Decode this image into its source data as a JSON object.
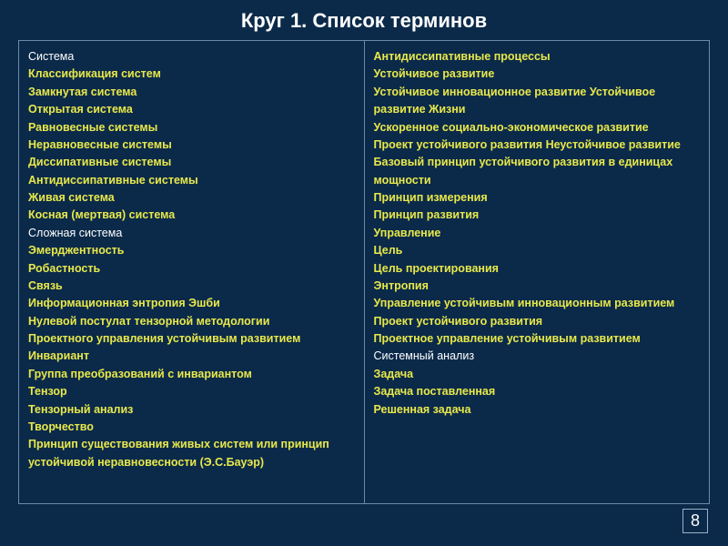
{
  "title": "Круг 1. Список терминов",
  "page_number": "8",
  "colors": {
    "background": "#0b2a4a",
    "border": "#6a8aa8",
    "white_text": "#ffffff",
    "yellow_text": "#e8e84a"
  },
  "left_column": [
    {
      "text": "Система",
      "style": "white"
    },
    {
      "text": "Классификация систем",
      "style": "yellow"
    },
    {
      "text": "Замкнутая система",
      "style": "yellow"
    },
    {
      "text": "Открытая система",
      "style": "yellow"
    },
    {
      "text": "Равновесные системы",
      "style": "yellow"
    },
    {
      "text": "Неравновесные системы",
      "style": "yellow"
    },
    {
      "text": "Диссипативные системы",
      "style": "yellow"
    },
    {
      "text": "Антидиссипативные системы",
      "style": "yellow"
    },
    {
      "text": "Живая система",
      "style": "yellow"
    },
    {
      "text": "Косная (мертвая) система",
      "style": "yellow"
    },
    {
      "text": "Сложная система",
      "style": "white"
    },
    {
      "text": "Эмерджентность",
      "style": "yellow"
    },
    {
      "text": "Робастность",
      "style": "yellow"
    },
    {
      "text": "Связь",
      "style": "yellow"
    },
    {
      "text": "Информационная энтропия Эшби",
      "style": "yellow"
    },
    {
      "text": "Нулевой постулат тензорной методологии",
      "style": "yellow"
    },
    {
      "text": "Проектного управления устойчивым развитием",
      "style": "yellow"
    },
    {
      "text": "Инвариант",
      "style": "yellow"
    },
    {
      "text": "Группа преобразований с инвариантом",
      "style": "yellow"
    },
    {
      "text": "Тензор",
      "style": "yellow"
    },
    {
      "text": "Тензорный анализ",
      "style": "yellow"
    },
    {
      "text": "Творчество",
      "style": "yellow"
    },
    {
      "text": "Принцип существования живых систем или принцип устойчивой неравновесности (Э.С.Бауэр)",
      "style": "yellow"
    }
  ],
  "right_column": [
    {
      "text": "Антидиссипативные процессы",
      "style": "yellow"
    },
    {
      "text": "Устойчивое развитие",
      "style": "yellow"
    },
    {
      "text": "Устойчивое инновационное развитие Устойчивое развитие Жизни",
      "style": "yellow"
    },
    {
      "text": "Ускоренное социально-экономическое развитие",
      "style": "yellow"
    },
    {
      "text": "Проект устойчивого развития Неустойчивое развитие",
      "style": "yellow"
    },
    {
      "text": "Базовый принцип устойчивого развития в единицах мощности",
      "style": "yellow"
    },
    {
      "text": "Принцип измерения",
      "style": "yellow"
    },
    {
      "text": "Принцип развития",
      "style": "yellow"
    },
    {
      "text": "Управление",
      "style": "yellow"
    },
    {
      "text": "Цель",
      "style": "yellow"
    },
    {
      "text": "Цель проектирования",
      "style": "yellow"
    },
    {
      "text": "Энтропия",
      "style": "yellow"
    },
    {
      "text": "Управление устойчивым инновационным развитием",
      "style": "yellow"
    },
    {
      "text": "Проект устойчивого развития",
      "style": "yellow"
    },
    {
      "text": "Проектное управление устойчивым развитием",
      "style": "yellow"
    },
    {
      "text": "Системный анализ",
      "style": "white"
    },
    {
      "text": "Задача",
      "style": "yellow"
    },
    {
      "text": "Задача поставленная",
      "style": "yellow"
    },
    {
      "text": "Решенная задача",
      "style": "yellow"
    }
  ]
}
